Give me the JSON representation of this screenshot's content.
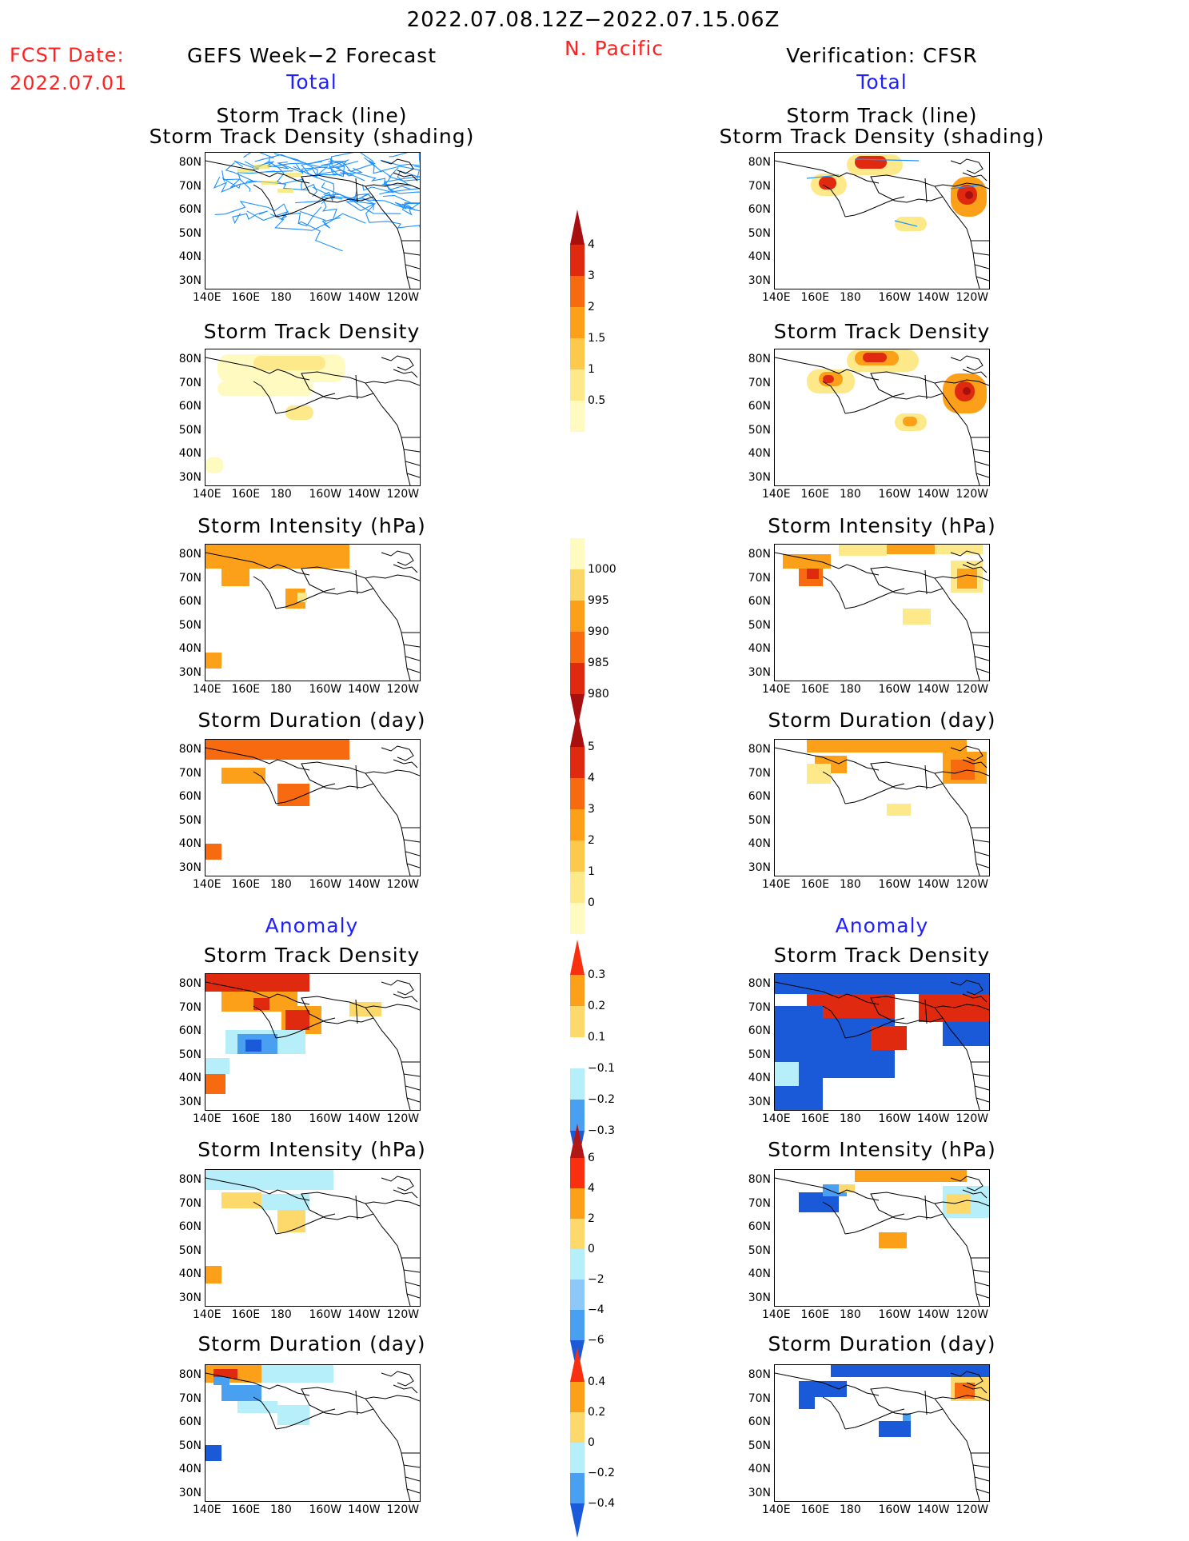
{
  "header": {
    "date_range": "2022.07.08.12Z−2022.07.15.06Z",
    "region": "N. Pacific",
    "fcst_label": "FCST Date:",
    "fcst_date": "2022.07.01",
    "left_title": "GEFS Week−2 Forecast",
    "right_title": "Verification: CFSR",
    "total_label": "Total",
    "anomaly_label": "Anomaly"
  },
  "panel_titles": {
    "track_line": "Storm Track (line)",
    "track_density_shading": "Storm Track Density (shading)",
    "track_density": "Storm Track Density",
    "intensity": "Storm Intensity (hPa)",
    "duration": "Storm Duration (day)"
  },
  "axes": {
    "lat_labels": [
      "80N",
      "70N",
      "60N",
      "50N",
      "40N",
      "30N"
    ],
    "lon_labels": [
      "140E",
      "160E",
      "180",
      "160W",
      "140W",
      "120W"
    ]
  },
  "colorbars": {
    "track_density": {
      "ticks": [
        "4",
        "3",
        "2",
        "1.5",
        "1",
        "0.5"
      ],
      "colors": [
        "#a81010",
        "#e02a10",
        "#f86a10",
        "#fba018",
        "#fdc94a",
        "#fee98a",
        "#fffbc0"
      ]
    },
    "intensity": {
      "ticks": [
        "1000",
        "995",
        "990",
        "985",
        "980"
      ],
      "colors": [
        "#fffbc0",
        "#fbd76a",
        "#fba018",
        "#f86a10",
        "#e02a10",
        "#a81010"
      ]
    },
    "duration": {
      "ticks": [
        "5",
        "4",
        "3",
        "2",
        "1",
        "0"
      ],
      "colors": [
        "#a81010",
        "#e02a10",
        "#f86a10",
        "#fba018",
        "#fdc94a",
        "#fee98a",
        "#fffbc0"
      ]
    },
    "anom_density": {
      "ticks": [
        "0.3",
        "0.2",
        "0.1",
        "−0.1",
        "−0.2",
        "−0.3"
      ],
      "colors": [
        "#f83010",
        "#fba018",
        "#fdd86a",
        "#ffffff",
        "#b6eefa",
        "#4aa0f0",
        "#1a5ad8"
      ]
    },
    "anom_intensity": {
      "ticks": [
        "6",
        "4",
        "2",
        "0",
        "−2",
        "−4",
        "−6"
      ],
      "colors": [
        "#b01818",
        "#f83010",
        "#fba018",
        "#fdd86a",
        "#b6eefa",
        "#8cc8f8",
        "#4aa0f0",
        "#1a5ad8"
      ]
    },
    "anom_duration": {
      "ticks": [
        "0.4",
        "0.2",
        "0",
        "−0.2",
        "−0.4"
      ],
      "colors": [
        "#f83010",
        "#fba018",
        "#fdd86a",
        "#b6eefa",
        "#4aa0f0",
        "#1a5ad8"
      ]
    }
  }
}
